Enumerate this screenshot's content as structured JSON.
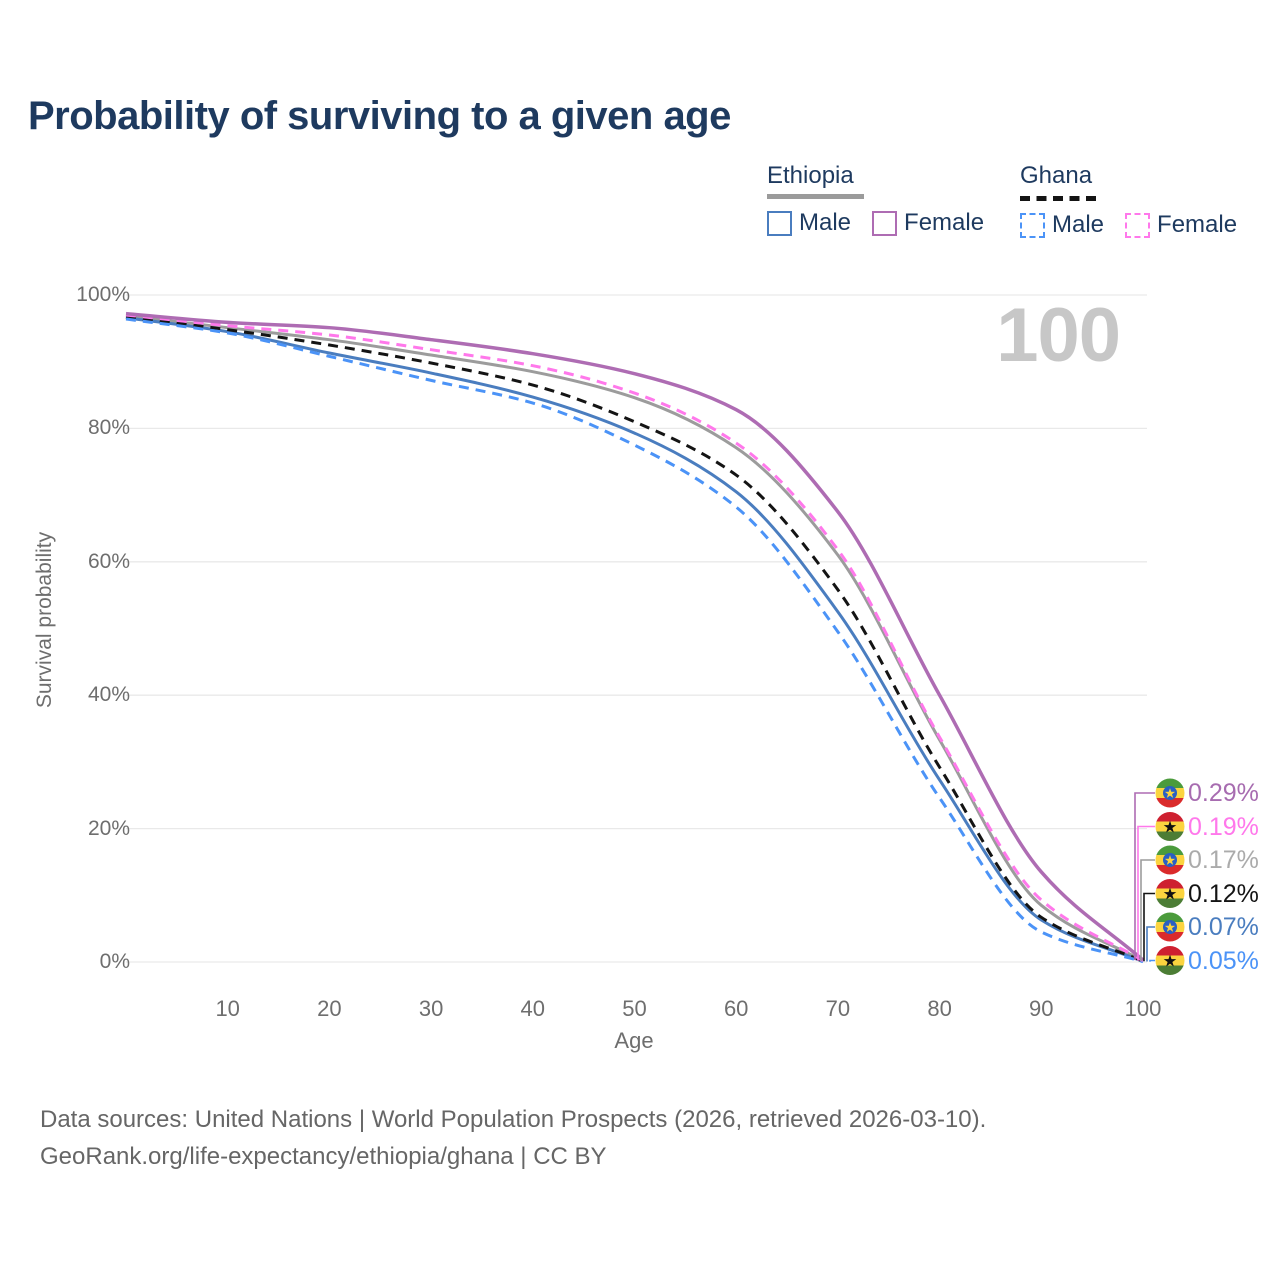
{
  "title": "Probability of surviving to a given age",
  "watermark_age": "100",
  "legend": {
    "groups": [
      {
        "name": "Ethiopia",
        "underline": "solid",
        "underline_color": "#9b9b9b",
        "items": [
          {
            "label": "Male",
            "color": "#4a7dbf",
            "dash": "solid"
          },
          {
            "label": "Female",
            "color": "#ae6cb3",
            "dash": "solid"
          }
        ]
      },
      {
        "name": "Ghana",
        "underline": "dashed",
        "underline_color": "#141414",
        "items": [
          {
            "label": "Male",
            "color": "#4b93f7",
            "dash": "dashed"
          },
          {
            "label": "Female",
            "color": "#ff78eb",
            "dash": "dashed"
          }
        ]
      }
    ]
  },
  "chart_data": {
    "type": "line",
    "title": "Probability of surviving to a given age",
    "xlabel": "Age",
    "ylabel": "Survival probability",
    "xlim": [
      0,
      100
    ],
    "ylim": [
      0,
      100
    ],
    "grid": "horizontal",
    "x_ticks": [
      10,
      20,
      30,
      40,
      50,
      60,
      70,
      80,
      90,
      100
    ],
    "y_ticks": [
      0,
      20,
      40,
      60,
      80,
      100
    ],
    "y_tick_labels": [
      "0%",
      "20%",
      "40%",
      "60%",
      "80%",
      "100%"
    ],
    "x": [
      0,
      10,
      20,
      30,
      40,
      50,
      60,
      70,
      80,
      90,
      100
    ],
    "series": [
      {
        "key": "ethiopia-female",
        "name": "Ethiopia Female",
        "country": "ethiopia",
        "color": "#ae6cb3",
        "dash": "solid",
        "values": [
          97.2,
          95.9,
          95.1,
          93.3,
          91.2,
          88.2,
          82.8,
          67.5,
          40.0,
          13.5,
          0.29
        ]
      },
      {
        "key": "ghana-female",
        "name": "Ghana Female",
        "country": "ghana",
        "color": "#ff78eb",
        "dash": "dashed",
        "values": [
          97.0,
          95.4,
          94.0,
          91.8,
          89.4,
          85.3,
          77.8,
          61.8,
          33.7,
          9.3,
          0.19
        ]
      },
      {
        "key": "ethiopia-all",
        "name": "Ethiopia",
        "country": "ethiopia",
        "color": "#9c9c9c",
        "dash": "solid",
        "values": [
          96.9,
          95.1,
          93.3,
          91.0,
          88.5,
          84.6,
          77.1,
          61.0,
          33.3,
          8.5,
          0.17
        ]
      },
      {
        "key": "ghana-all",
        "name": "Ghana",
        "country": "ghana",
        "color": "#141414",
        "dash": "dashed",
        "values": [
          96.7,
          94.8,
          92.5,
          89.8,
          86.5,
          81.0,
          73.0,
          55.8,
          29.2,
          6.7,
          0.12
        ]
      },
      {
        "key": "ethiopia-male",
        "name": "Ethiopia Male",
        "country": "ethiopia",
        "color": "#4a7dbf",
        "dash": "solid",
        "values": [
          96.6,
          94.5,
          91.3,
          88.3,
          84.7,
          79.3,
          70.5,
          52.5,
          27.3,
          6.3,
          0.07
        ]
      },
      {
        "key": "ghana-male",
        "name": "Ghana Male",
        "country": "ghana",
        "color": "#4b93f7",
        "dash": "dashed",
        "values": [
          96.4,
          94.3,
          90.8,
          87.2,
          83.8,
          77.5,
          68.2,
          49.5,
          24.6,
          4.5,
          0.05
        ]
      }
    ],
    "end_labels": [
      {
        "series": "ethiopia-female",
        "value": "0.29%",
        "text_color": "#a76cb0",
        "flag": "ethiopia"
      },
      {
        "series": "ghana-female",
        "value": "0.19%",
        "text_color": "#ff78eb",
        "flag": "ghana"
      },
      {
        "series": "ethiopia-all",
        "value": "0.17%",
        "text_color": "#ababab",
        "flag": "ethiopia"
      },
      {
        "series": "ghana-all",
        "value": "0.12%",
        "text_color": "#141414",
        "flag": "ghana"
      },
      {
        "series": "ethiopia-male",
        "value": "0.07%",
        "text_color": "#4a7dbf",
        "flag": "ethiopia"
      },
      {
        "series": "ghana-male",
        "value": "0.05%",
        "text_color": "#4b93f7",
        "flag": "ghana"
      }
    ]
  },
  "colors": {
    "title": "#1e3a5f",
    "axis_text": "#6e6e6e",
    "grid": "#e9e9e9",
    "watermark": "#c7c7c7"
  },
  "sources": {
    "line1": "Data sources: United Nations | World Population Prospects (2026, retrieved 2026-03-10).",
    "line2": "GeoRank.org/life-expectancy/ethiopia/ghana | CC BY"
  }
}
